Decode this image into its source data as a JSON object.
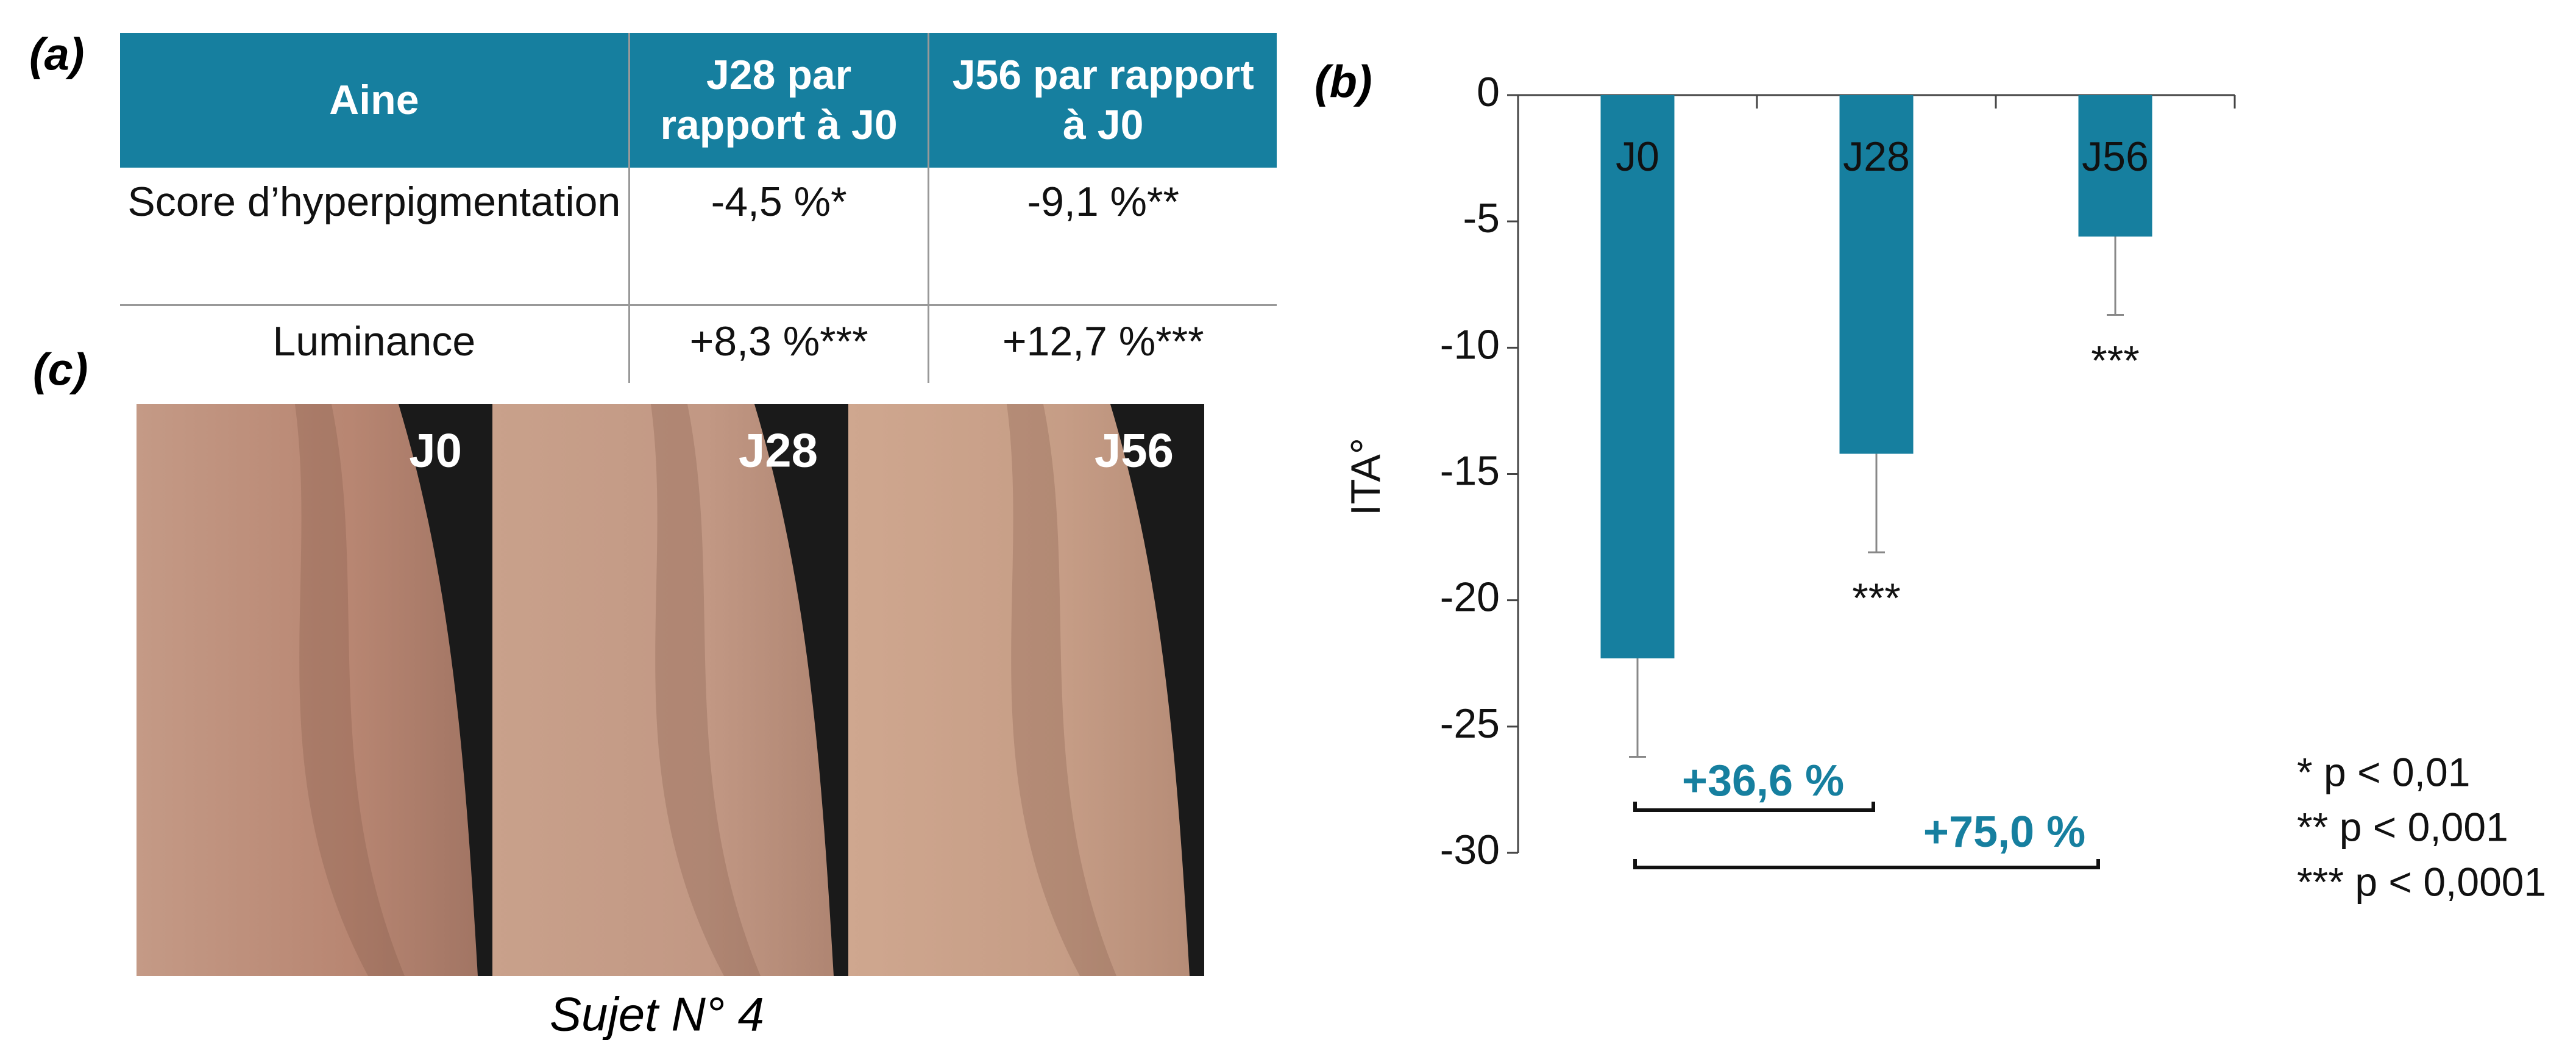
{
  "panel_labels": [
    "(a)",
    "(b)",
    "(c)"
  ],
  "table": {
    "header": [
      "Aine",
      "J28 par rapport à J0",
      "J56 par rapport à J0"
    ],
    "rows": [
      [
        "Score d’hyperpigmentation",
        "-4,5 %*",
        "-9,1 %**"
      ],
      [
        "Luminance",
        "+8,3 %***",
        "+12,7 %***"
      ]
    ]
  },
  "photos": {
    "labels": [
      "J0",
      "J28",
      "J56"
    ],
    "caption": "Sujet N° 4"
  },
  "chart_data": {
    "type": "bar",
    "y_label": "ITA°",
    "categories": [
      "J0",
      "J28",
      "J56"
    ],
    "values": [
      -22.3,
      -14.2,
      -5.6
    ],
    "errors": [
      3.9,
      3.9,
      3.1
    ],
    "significance": [
      null,
      "***",
      "***"
    ],
    "color": "#167f9f",
    "ylim": [
      -30,
      0
    ],
    "yticks": [
      0,
      -5,
      -10,
      -15,
      -20,
      -25,
      -30
    ],
    "annotations": [
      "+36,6 %",
      "+75,0 %"
    ],
    "annotation_color": "#167f9f",
    "legend": [
      "* p < 0,01",
      "** p < 0,001",
      "*** p < 0,0001"
    ]
  }
}
